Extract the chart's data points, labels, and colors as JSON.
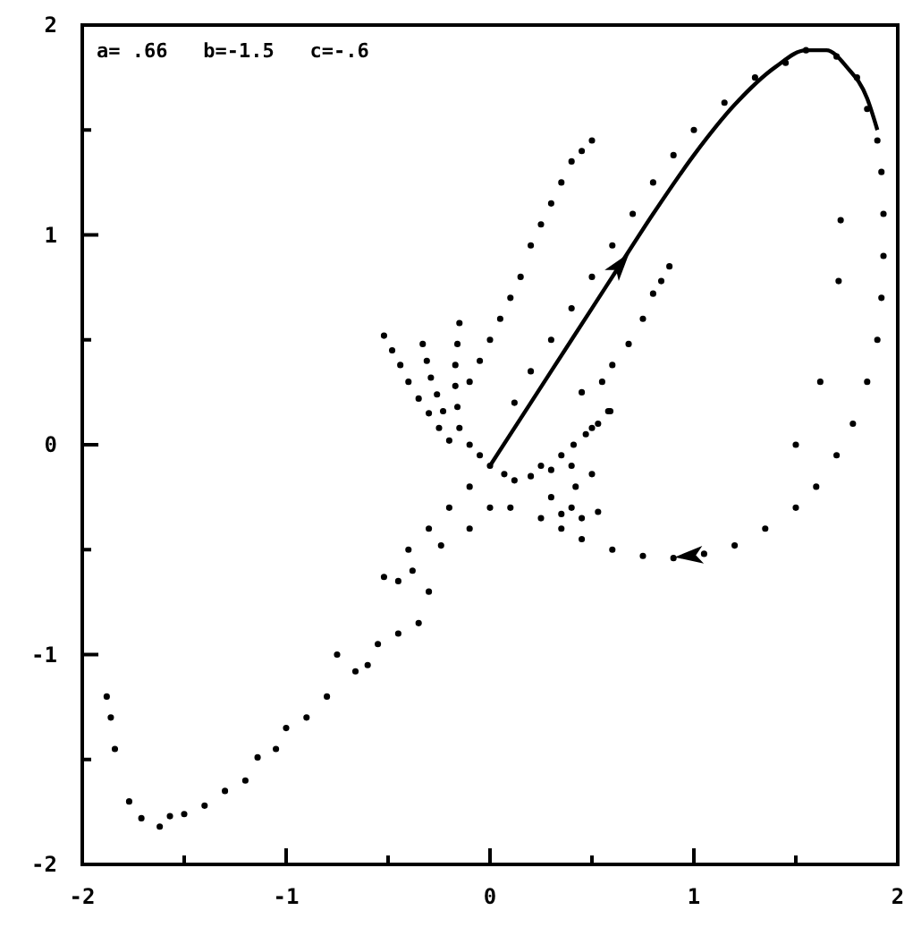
{
  "chart_data": {
    "type": "scatter",
    "annotations": [
      "a= .66   b=-1.5   c=-.6"
    ],
    "xlim": [
      -2,
      2
    ],
    "ylim": [
      -2,
      2
    ],
    "xticks": [
      -2,
      {
        "value": -1.5,
        "label": null
      },
      -1,
      {
        "value": -0.5,
        "label": null
      },
      0,
      {
        "value": 0.5,
        "label": null
      },
      1,
      {
        "value": 1.5,
        "label": null
      },
      2
    ],
    "yticks": [
      -2,
      {
        "value": -1.5,
        "label": null
      },
      -1,
      {
        "value": -0.5,
        "label": null
      },
      0,
      {
        "value": 0.5,
        "label": null
      },
      1,
      {
        "value": 1.5,
        "label": null
      },
      2
    ],
    "grid": false,
    "marker": "circle",
    "series": [
      {
        "color": "#000000",
        "x": [
          1.55,
          1.7,
          1.8,
          1.85,
          1.9,
          1.92,
          1.93,
          1.93,
          1.92,
          1.9,
          1.85,
          1.78,
          1.7,
          1.6,
          1.5,
          1.35,
          1.2,
          1.05,
          0.9,
          0.75,
          0.6,
          0.45,
          0.35,
          0.25,
          1.45,
          1.3,
          1.15,
          1.0,
          0.9,
          0.8,
          0.7,
          0.6,
          0.5,
          0.4,
          0.3,
          0.2,
          0.12,
          1.72,
          1.71,
          1.62,
          1.5,
          0.5,
          0.45,
          0.4,
          0.35,
          0.3,
          0.25,
          0.2,
          0.15,
          0.1,
          0.05,
          0.0,
          -0.1,
          -0.05,
          0.88,
          0.84,
          0.8,
          0.75,
          0.68,
          0.6,
          0.55,
          0.45,
          0.59,
          0.53,
          0.47,
          0.41,
          0.35,
          0.25,
          -0.52,
          -0.48,
          -0.44,
          -0.4,
          -0.35,
          -0.3,
          -0.25,
          -0.2,
          -0.33,
          -0.31,
          -0.29,
          -0.26,
          -0.23,
          -0.15,
          -0.16,
          -0.17,
          -0.17,
          -0.16,
          -0.15,
          -0.1,
          -0.05,
          0.0,
          0.07,
          0.12,
          0.2,
          0.3,
          0.4,
          0.5,
          0.42,
          0.3,
          0.4,
          0.53,
          0.45,
          0.35,
          0.58,
          0.5,
          -0.1,
          -0.2,
          -0.1,
          0.0,
          0.1,
          -0.3,
          -0.24,
          -0.4,
          -0.52,
          -0.45,
          -0.38,
          -0.3,
          -0.35,
          -0.45,
          -0.55,
          -0.66,
          -0.6,
          -0.75,
          -0.8,
          -0.9,
          -1.0,
          -1.05,
          -1.14,
          -1.2,
          -1.3,
          -1.4,
          -1.5,
          -1.57,
          -1.62,
          -1.71,
          -1.77,
          -1.84,
          -1.88,
          -1.86
        ],
        "values": [
          1.88,
          1.85,
          1.75,
          1.6,
          1.45,
          1.3,
          1.1,
          0.9,
          0.7,
          0.5,
          0.3,
          0.1,
          -0.05,
          -0.2,
          -0.3,
          -0.4,
          -0.48,
          -0.52,
          -0.54,
          -0.53,
          -0.5,
          -0.45,
          -0.4,
          -0.35,
          1.82,
          1.75,
          1.63,
          1.5,
          1.38,
          1.25,
          1.1,
          0.95,
          0.8,
          0.65,
          0.5,
          0.35,
          0.2,
          1.07,
          0.78,
          0.3,
          0.0,
          1.45,
          1.4,
          1.35,
          1.25,
          1.15,
          1.05,
          0.95,
          0.8,
          0.7,
          0.6,
          0.5,
          0.3,
          0.4,
          0.85,
          0.78,
          0.72,
          0.6,
          0.48,
          0.38,
          0.3,
          0.25,
          0.16,
          0.1,
          0.05,
          0.0,
          -0.05,
          -0.1,
          0.52,
          0.45,
          0.38,
          0.3,
          0.22,
          0.15,
          0.08,
          0.02,
          0.48,
          0.4,
          0.32,
          0.24,
          0.16,
          0.58,
          0.48,
          0.38,
          0.28,
          0.18,
          0.08,
          0.0,
          -0.05,
          -0.1,
          -0.14,
          -0.17,
          -0.15,
          -0.12,
          -0.1,
          -0.14,
          -0.2,
          -0.25,
          -0.3,
          -0.32,
          -0.35,
          -0.33,
          0.16,
          0.08,
          -0.2,
          -0.3,
          -0.4,
          -0.3,
          -0.3,
          -0.4,
          -0.48,
          -0.5,
          -0.63,
          -0.65,
          -0.6,
          -0.7,
          -0.85,
          -0.9,
          -0.95,
          -1.08,
          -1.05,
          -1.0,
          -1.2,
          -1.3,
          -1.35,
          -1.45,
          -1.49,
          -1.6,
          -1.65,
          -1.72,
          -1.76,
          -1.77,
          -1.82,
          -1.78,
          -1.7,
          -1.45,
          -1.2,
          -1.3
        ]
      },
      {
        "type": "line",
        "color": "#000000",
        "marker": "none",
        "x": [
          0.0,
          0.2,
          0.4,
          0.6,
          0.8,
          1.0,
          1.2,
          1.4,
          1.55,
          1.65,
          1.75,
          1.85,
          1.9
        ],
        "values": [
          -0.1,
          0.2,
          0.5,
          0.8,
          1.1,
          1.38,
          1.62,
          1.8,
          1.88,
          1.88,
          1.8,
          1.65,
          1.5
        ]
      }
    ]
  }
}
